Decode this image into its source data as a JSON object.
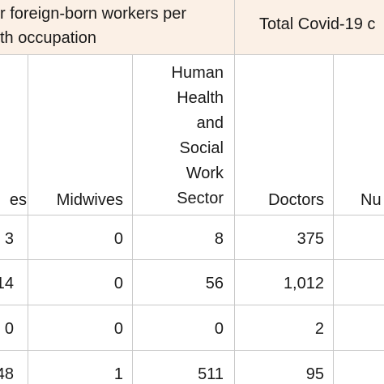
{
  "group_headers": {
    "left_line1": "r foreign-born workers per",
    "left_line2": "th occupation",
    "right": "Total Covid-19 c"
  },
  "columns": {
    "c0": "es",
    "c1": "Midwives",
    "c2": [
      "Human",
      "Health",
      "and",
      "Social",
      "Work",
      "Sector"
    ],
    "c3": "Doctors",
    "c4": "Nu"
  },
  "rows": [
    [
      "3",
      "0",
      "8",
      "375"
    ],
    [
      "14",
      "0",
      "56",
      "1,012"
    ],
    [
      "0",
      "0",
      "0",
      "2"
    ],
    [
      "48",
      "1",
      "511",
      "95"
    ]
  ]
}
